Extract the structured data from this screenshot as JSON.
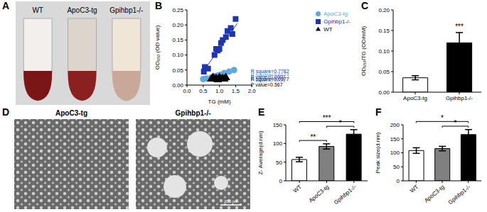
{
  "chart_data": [
    {
      "type": "photo",
      "title": "A",
      "labels": [
        "WT",
        "ApoC3-tg",
        "Gpihbp1-/-"
      ]
    },
    {
      "type": "scatter",
      "title": "B",
      "x_label": "TG (mM)",
      "y_label": "OD₆₅₀ (OD value)",
      "xlim": [
        0,
        2
      ],
      "xticks": [
        {
          "value": 0,
          "label": "0.0"
        },
        {
          "value": 0.5,
          "label": "0.5"
        },
        {
          "value": 1,
          "label": "1.0"
        },
        {
          "value": 1.5,
          "label": "1.5"
        },
        {
          "value": 2,
          "label": "2.0"
        }
      ],
      "ylim": [
        0,
        0.25
      ],
      "yticks": [
        {
          "value": 0,
          "label": "0.00"
        },
        {
          "value": 0.05,
          "label": "0.05"
        },
        {
          "value": 0.1,
          "label": "0.10"
        },
        {
          "value": 0.15,
          "label": "0.15"
        },
        {
          "value": 0.2,
          "label": "0.20"
        },
        {
          "value": 0.25,
          "label": "0.25"
        }
      ],
      "legend": "upper right",
      "series": [
        {
          "name": "ApoC3-tg",
          "color": "#5fa8e0",
          "marker": "circle",
          "x": [
            0.5,
            0.6,
            0.75,
            0.85,
            0.95,
            1.05,
            1.15,
            1.3,
            1.45
          ],
          "values": [
            0.02,
            0.022,
            0.025,
            0.03,
            0.032,
            0.035,
            0.04,
            0.045,
            0.05
          ],
          "fit_x": [
            0.5,
            1.5
          ],
          "fit_values": [
            0.018,
            0.05
          ],
          "annotation": [
            "R square=0.6174",
            "P value=0.0021"
          ]
        },
        {
          "name": "Gpihbp1-/-",
          "color": "#1f35b0",
          "marker": "square",
          "x": [
            0.52,
            0.55,
            0.65,
            0.85,
            0.9,
            0.95,
            1.0,
            1.05,
            1.1,
            1.2,
            1.25,
            1.35,
            1.4,
            1.5
          ],
          "values": [
            0.045,
            0.06,
            0.055,
            0.1,
            0.12,
            0.115,
            0.12,
            0.14,
            0.15,
            0.16,
            0.18,
            0.19,
            0.17,
            0.22
          ],
          "fit_x": [
            0.5,
            1.55
          ],
          "fit_values": [
            0.045,
            0.205
          ],
          "annotation": [
            "R square=0.7782",
            "P value=0.0007"
          ]
        },
        {
          "name": "WT",
          "color": "#000000",
          "marker": "triangle",
          "x": [
            0.75,
            0.8,
            0.85,
            0.9,
            0.95,
            1.0,
            1.05,
            1.1,
            1.15,
            1.2
          ],
          "values": [
            0.02,
            0.025,
            0.02,
            0.022,
            0.018,
            0.025,
            0.02,
            0.022,
            0.02,
            0.025
          ],
          "fit_x": [
            0.75,
            1.25
          ],
          "fit_values": [
            0.021,
            0.023
          ],
          "annotation": [
            "R square=0.0377",
            "P value=0.567"
          ]
        }
      ]
    },
    {
      "type": "bar",
      "title": "C",
      "y_label": "OD₆₅₀/TG (OD/mM)",
      "categories": [
        "ApoC3-tg",
        "Gpihbp1-/-"
      ],
      "values": [
        0.035,
        0.12
      ],
      "errors": [
        0.005,
        0.025
      ],
      "colors": [
        "#ffffff",
        "#000000"
      ],
      "ylim": [
        0,
        0.2
      ],
      "yticks": [
        {
          "value": 0,
          "label": "0.00"
        },
        {
          "value": 0.05,
          "label": "0.05"
        },
        {
          "value": 0.1,
          "label": "0.10"
        },
        {
          "value": 0.15,
          "label": "0.15"
        },
        {
          "value": 0.2,
          "label": "0.20"
        }
      ],
      "significance": [
        {
          "category": "Gpihbp1-/-",
          "label": "***"
        }
      ]
    },
    {
      "type": "micrograph",
      "title": "D",
      "labels": [
        "ApoC3-tg",
        "Gpihbp1-/-"
      ],
      "scale_bar": "200 nm"
    },
    {
      "type": "bar",
      "title": "E",
      "y_label": "Z- Average(d.nm)",
      "categories": [
        "WT",
        "ApoC3-tg",
        "Gpihbp1-/-"
      ],
      "values": [
        57,
        92,
        125
      ],
      "errors": [
        6,
        7,
        12
      ],
      "colors": [
        "#ffffff",
        "#808080",
        "#000000"
      ],
      "ylim": [
        0,
        150
      ],
      "yticks": [
        0,
        50,
        100,
        150
      ],
      "brackets": [
        {
          "from": "WT",
          "to": "ApoC3-tg",
          "label": "**"
        },
        {
          "from": "ApoC3-tg",
          "to": "Gpihbp1-/-",
          "label": "*"
        },
        {
          "from": "WT",
          "to": "Gpihbp1-/-",
          "label": "***"
        }
      ]
    },
    {
      "type": "bar",
      "title": "F",
      "y_label": "Peak size(d.nm)",
      "categories": [
        "WT",
        "ApoC3-tg",
        "Gpihbp1-/-"
      ],
      "values": [
        108,
        115,
        165
      ],
      "errors": [
        10,
        8,
        18
      ],
      "colors": [
        "#ffffff",
        "#808080",
        "#000000"
      ],
      "ylim": [
        0,
        200
      ],
      "yticks": [
        0,
        50,
        100,
        150,
        200
      ],
      "brackets": [
        {
          "from": "ApoC3-tg",
          "to": "Gpihbp1-/-",
          "label": "*"
        },
        {
          "from": "WT",
          "to": "Gpihbp1-/-",
          "label": "*"
        }
      ]
    }
  ]
}
